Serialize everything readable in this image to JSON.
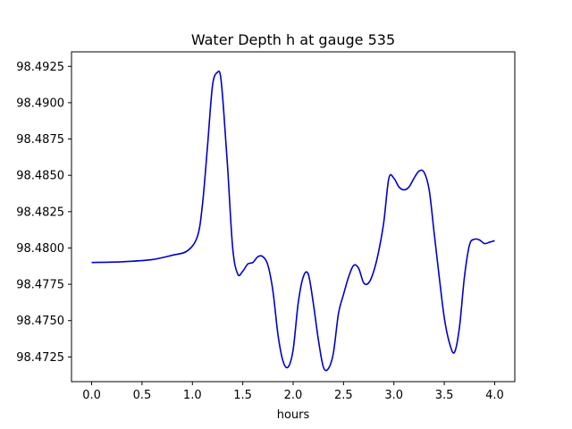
{
  "chart_data": {
    "type": "line",
    "title": "Water Depth h at gauge 535",
    "xlabel": "hours",
    "ylabel": "",
    "xlim": [
      -0.2,
      4.2
    ],
    "ylim": [
      98.4708,
      98.4935
    ],
    "xticks": [
      0.0,
      0.5,
      1.0,
      1.5,
      2.0,
      2.5,
      3.0,
      3.5,
      4.0
    ],
    "xtick_labels": [
      "0.0",
      "0.5",
      "1.0",
      "1.5",
      "2.0",
      "2.5",
      "3.0",
      "3.5",
      "4.0"
    ],
    "yticks": [
      98.4725,
      98.475,
      98.4775,
      98.48,
      98.4825,
      98.485,
      98.4875,
      98.49,
      98.4925
    ],
    "ytick_labels": [
      "98.4725",
      "98.4750",
      "98.4775",
      "98.4800",
      "98.4825",
      "98.4850",
      "98.4875",
      "98.4900",
      "98.4925"
    ],
    "grid": false,
    "colors": {
      "line": "#0000cc"
    },
    "series": [
      {
        "x": [
          0.0,
          0.3,
          0.6,
          0.8,
          0.95,
          1.05,
          1.1,
          1.15,
          1.2,
          1.25,
          1.28,
          1.31,
          1.35,
          1.4,
          1.45,
          1.5,
          1.55,
          1.6,
          1.65,
          1.7,
          1.75,
          1.8,
          1.85,
          1.9,
          1.95,
          2.0,
          2.05,
          2.1,
          2.15,
          2.2,
          2.25,
          2.3,
          2.35,
          2.4,
          2.45,
          2.5,
          2.55,
          2.6,
          2.65,
          2.7,
          2.75,
          2.8,
          2.85,
          2.9,
          2.95,
          3.0,
          3.05,
          3.1,
          3.15,
          3.2,
          3.25,
          3.3,
          3.35,
          3.4,
          3.45,
          3.5,
          3.55,
          3.6,
          3.65,
          3.7,
          3.75,
          3.8,
          3.85,
          3.9,
          3.95,
          4.0
        ],
        "y": [
          98.479,
          98.47905,
          98.4792,
          98.4795,
          98.4798,
          98.4808,
          98.483,
          98.487,
          98.4912,
          98.4921,
          98.4918,
          98.4895,
          98.4855,
          98.48,
          98.4782,
          98.4784,
          98.4789,
          98.479,
          98.4794,
          98.4794,
          98.4788,
          98.477,
          98.474,
          98.4722,
          98.4718,
          98.473,
          98.4762,
          98.478,
          98.4782,
          98.4762,
          98.4737,
          98.4718,
          98.4717,
          98.4728,
          98.4755,
          98.4768,
          98.478,
          98.4788,
          98.4786,
          98.4776,
          98.4776,
          98.4784,
          98.4798,
          98.4818,
          98.4848,
          98.4848,
          98.4842,
          98.484,
          98.4842,
          98.4848,
          98.4853,
          98.4852,
          98.484,
          98.481,
          98.478,
          98.4752,
          98.4735,
          98.4728,
          98.4745,
          98.478,
          98.4802,
          98.4806,
          98.48055,
          98.4803,
          98.4804,
          98.4805
        ]
      }
    ]
  }
}
